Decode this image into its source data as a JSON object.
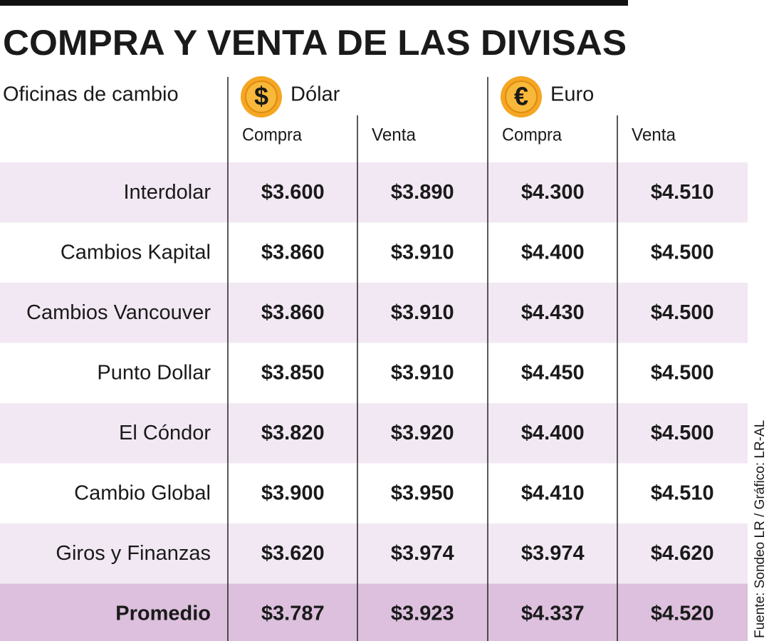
{
  "title": "COMPRA Y VENTA DE LAS DIVISAS",
  "header": {
    "row_label": "Oficinas de cambio",
    "currencies": [
      {
        "symbol": "$",
        "name": "Dólar",
        "columns": [
          "Compra",
          "Venta"
        ]
      },
      {
        "symbol": "€",
        "name": "Euro",
        "columns": [
          "Compra",
          "Venta"
        ]
      }
    ]
  },
  "rows": [
    {
      "name": "Interdolar",
      "values": [
        "$3.600",
        "$3.890",
        "$4.300",
        "$4.510"
      ]
    },
    {
      "name": "Cambios Kapital",
      "values": [
        "$3.860",
        "$3.910",
        "$4.400",
        "$4.500"
      ]
    },
    {
      "name": "Cambios Vancouver",
      "values": [
        "$3.860",
        "$3.910",
        "$4.430",
        "$4.500"
      ]
    },
    {
      "name": "Punto Dollar",
      "values": [
        "$3.850",
        "$3.910",
        "$4.450",
        "$4.500"
      ]
    },
    {
      "name": "El Cóndor",
      "values": [
        "$3.820",
        "$3.920",
        "$4.400",
        "$4.500"
      ]
    },
    {
      "name": "Cambio Global",
      "values": [
        "$3.900",
        "$3.950",
        "$4.410",
        "$4.510"
      ]
    },
    {
      "name": "Giros y Finanzas",
      "values": [
        "$3.620",
        "$3.974",
        "$3.974",
        "$4.620"
      ]
    },
    {
      "name": "Promedio",
      "values": [
        "$3.787",
        "$3.923",
        "$4.337",
        "$4.520"
      ]
    }
  ],
  "source": "Fuente: Sondeo LR / Gráfico: LR-AL"
}
